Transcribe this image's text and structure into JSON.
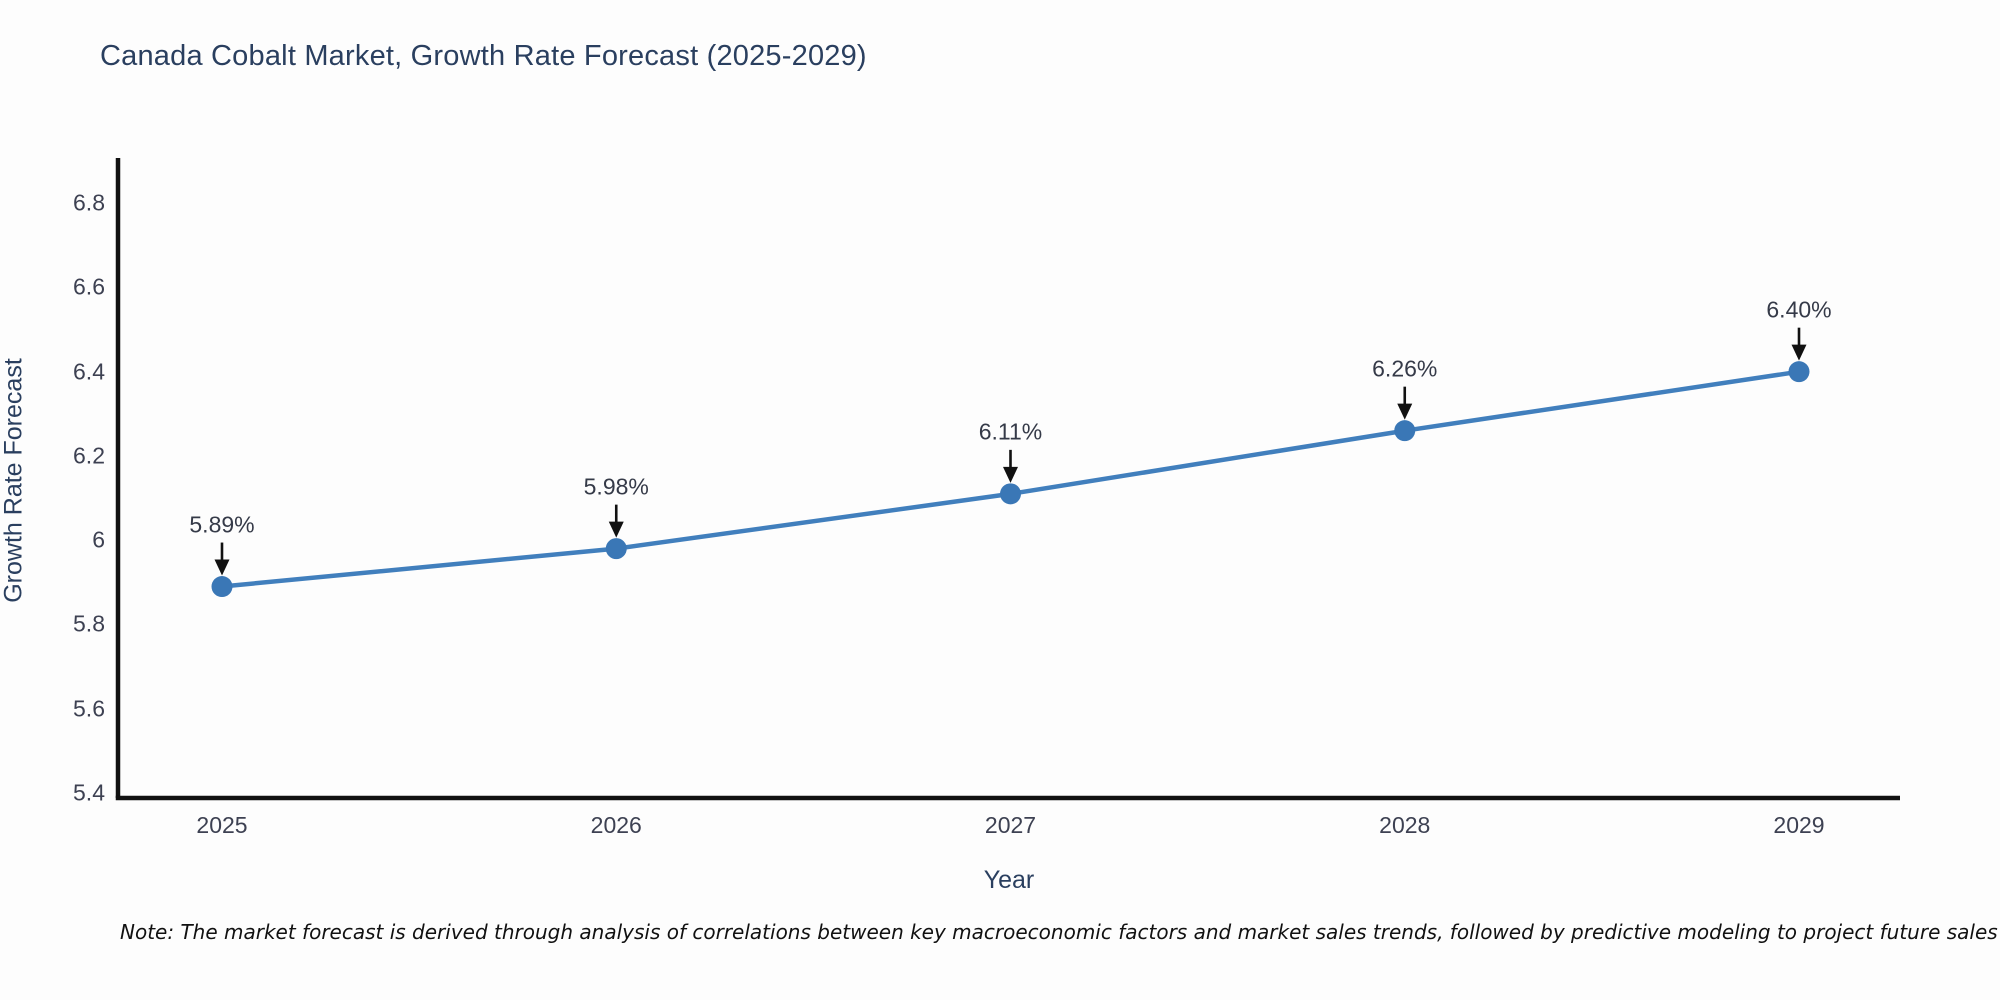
{
  "chart_data": {
    "type": "line",
    "title": "Canada Cobalt Market, Growth Rate Forecast (2025-2029)",
    "xlabel": "Year",
    "ylabel": "Growth Rate Forecast",
    "x": [
      "2025",
      "2026",
      "2027",
      "2028",
      "2029"
    ],
    "series": [
      {
        "name": "Growth Rate Forecast",
        "values": [
          5.89,
          5.98,
          6.11,
          6.26,
          6.4
        ]
      }
    ],
    "point_labels": [
      "5.89%",
      "5.98%",
      "6.11%",
      "6.26%",
      "6.40%"
    ],
    "ytick_values": [
      5.4,
      5.6,
      5.8,
      6,
      6.2,
      6.4,
      6.6,
      6.8
    ],
    "ytick_labels": [
      "5.4",
      "5.6",
      "5.8",
      "6",
      "6.2",
      "6.4",
      "6.6",
      "6.8"
    ],
    "ylim": [
      5.4,
      6.9
    ],
    "grid": false,
    "legend_position": "none",
    "line_color": "#417fbd",
    "marker_color": "#3a77b6",
    "axis_color": "#111111",
    "arrow_color": "#111111"
  },
  "note": {
    "text": "Note: The market forecast is derived through analysis of correlations between key macroeconomic factors and market sales trends, followed by predictive modeling to project future sales"
  }
}
